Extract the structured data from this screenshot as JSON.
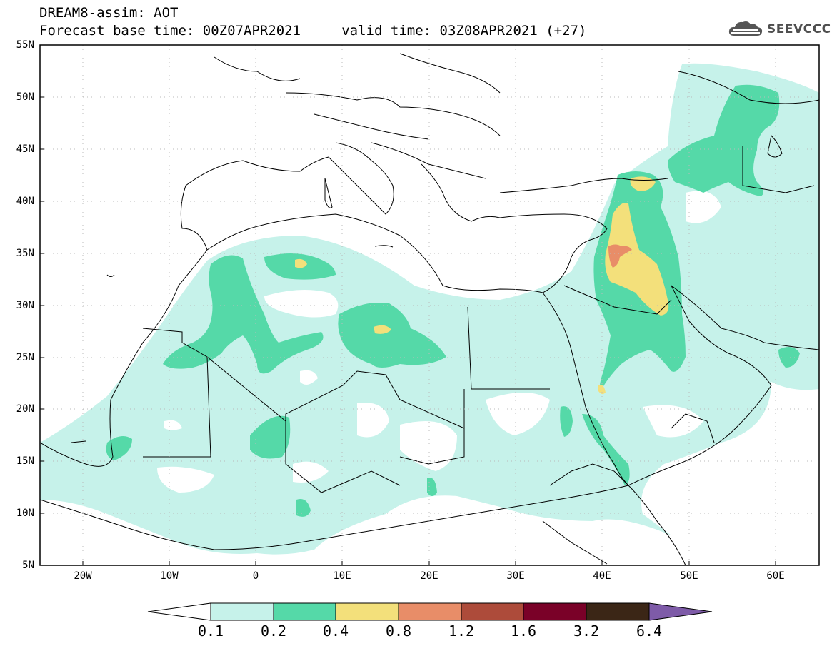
{
  "header": {
    "title_line1": "DREAM8-assim: AOT",
    "title_line2": "Forecast base time: 00Z07APR2021     valid time: 03Z08APR2021 (+27)",
    "logo_text": "SEEVCCC"
  },
  "axes": {
    "lat_labels": [
      "55N",
      "50N",
      "45N",
      "40N",
      "35N",
      "30N",
      "25N",
      "20N",
      "15N",
      "10N",
      "5N"
    ],
    "lon_labels": [
      "20W",
      "10W",
      "0",
      "10E",
      "20E",
      "30E",
      "40E",
      "50E",
      "60E"
    ],
    "lat_range": [
      5,
      55
    ],
    "lon_range": [
      -25,
      65
    ]
  },
  "legend": {
    "labels": [
      "0.1",
      "0.2",
      "0.4",
      "0.8",
      "1.2",
      "1.6",
      "3.2",
      "6.4"
    ],
    "colors": [
      "#c6f2ea",
      "#55d9a8",
      "#f3e07b",
      "#e88d68",
      "#ad4b3a",
      "#7a0128",
      "#3b2616",
      "#7e5ba8"
    ]
  },
  "colors": {
    "level1": "#c6f2ea",
    "level2": "#55d9a8",
    "level3": "#f3e07b",
    "level4": "#e88d68",
    "logo": "#555555"
  }
}
